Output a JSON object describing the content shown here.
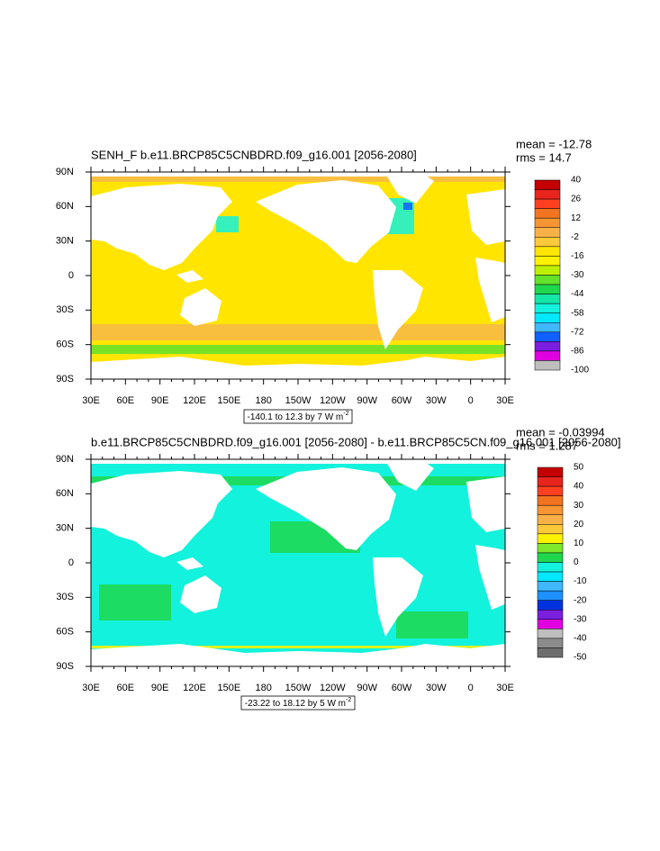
{
  "panels": [
    {
      "title": "SENH_F b.e11.BRCP85C5CNBDRD.f09_g16.001 [2056-2080]",
      "mean": "mean = -12.78",
      "rms": "rms = 14.7",
      "lat_labels": [
        "90N",
        "60N",
        "30N",
        "0",
        "30S",
        "60S",
        "90S"
      ],
      "lon_labels": [
        "30E",
        "60E",
        "90E",
        "120E",
        "150E",
        "180",
        "150W",
        "120W",
        "90W",
        "60W",
        "30W",
        "0",
        "30E"
      ],
      "colorbar": {
        "labels": [
          40,
          26,
          12,
          -2,
          -16,
          -30,
          -44,
          -58,
          -72,
          -86,
          -100
        ],
        "colors": [
          "#c40000",
          "#e8241c",
          "#ff4020",
          "#f27421",
          "#f59533",
          "#f7b148",
          "#fcc93a",
          "#ffe500",
          "#fff200",
          "#bdf000",
          "#62e22a",
          "#1fd84e",
          "#14e6a8",
          "#12f2dc",
          "#00e8ff",
          "#3fb8ff",
          "#1060ff",
          "#7a1ee0",
          "#e000e0",
          "#bebebe"
        ]
      },
      "contour_info": "-140.1 to 12.3 by 7  W m",
      "units_exponent": "-2"
    },
    {
      "title": "b.e11.BRCP85C5CNBDRD.f09_g16.001 [2056-2080] - b.e11.BRCP85C5CN.f09_g16.001 [2056-2080]",
      "mean": "mean = -0.03994",
      "rms": "rms = 1.287",
      "lat_labels": [
        "90N",
        "60N",
        "30N",
        "0",
        "30S",
        "60S",
        "90S"
      ],
      "lon_labels": [
        "30E",
        "60E",
        "90E",
        "120E",
        "150E",
        "180",
        "150W",
        "120W",
        "90W",
        "60W",
        "30W",
        "0",
        "30E"
      ],
      "colorbar": {
        "labels": [
          50,
          40,
          30,
          20,
          10,
          0,
          -10,
          -20,
          -30,
          -40,
          -50
        ],
        "colors": [
          "#c40000",
          "#e8241c",
          "#ff4020",
          "#f27421",
          "#f59533",
          "#f7b148",
          "#fcc93a",
          "#fff200",
          "#7ee82a",
          "#1fd84e",
          "#12f2dc",
          "#00e8ff",
          "#3fb8ff",
          "#1e90ff",
          "#0032e0",
          "#7a1ee0",
          "#e000e0",
          "#bebebe",
          "#8c8c8c",
          "#6e6e6e"
        ]
      },
      "contour_info": "-23.22 to 18.12 by 5  W m",
      "units_exponent": "-2"
    }
  ]
}
